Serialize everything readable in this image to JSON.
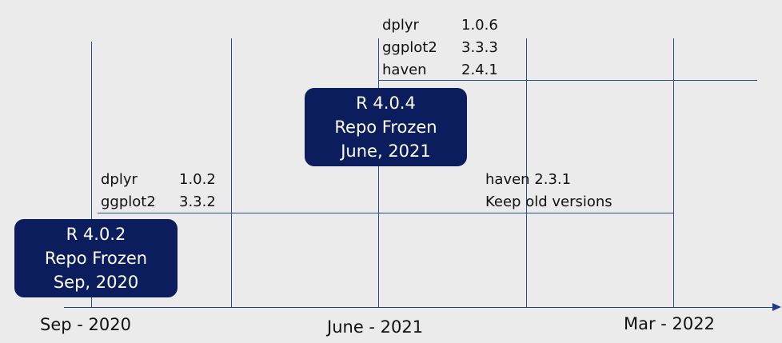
{
  "timeline": {
    "ticks": [
      "Sep - 2020",
      "June - 2021",
      "Mar - 2022"
    ]
  },
  "release_early": {
    "lines": [
      "R 4.0.2",
      "Repo Frozen",
      "Sep, 2020"
    ],
    "packages": [
      {
        "name": "dplyr",
        "version": "1.0.2"
      },
      {
        "name": "ggplot2",
        "version": "3.3.2"
      }
    ]
  },
  "release_late": {
    "lines": [
      "R 4.0.4",
      "Repo Frozen",
      "June, 2021"
    ],
    "packages": [
      {
        "name": "dplyr",
        "version": "1.0.6"
      },
      {
        "name": "ggplot2",
        "version": "3.3.3"
      },
      {
        "name": "haven",
        "version": "2.4.1"
      }
    ]
  },
  "note": {
    "lines": [
      "haven 2.3.1",
      "Keep old versions"
    ]
  },
  "colors": {
    "box_fill": "#0b1d5c",
    "line": "#2f4a8a",
    "background": "#ebebeb"
  }
}
